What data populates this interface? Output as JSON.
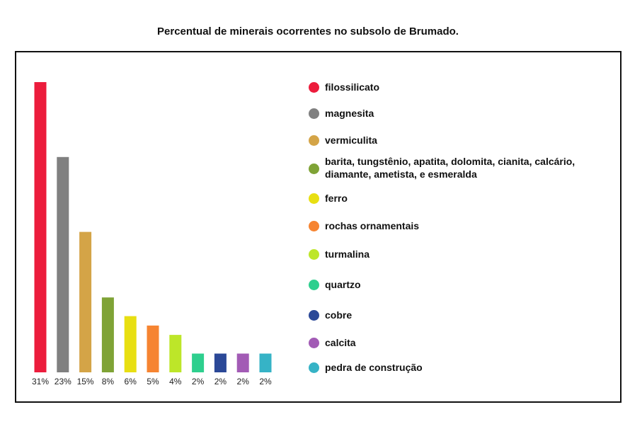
{
  "chart_data": {
    "type": "bar",
    "title": "Percentual de minerais ocorrentes no subsolo de Brumado.",
    "xlabel": "",
    "ylabel": "",
    "ylim": [
      0,
      31
    ],
    "grid": false,
    "legend_position": "right",
    "categories": [
      "filossilicato",
      "magnesita",
      "vermiculita",
      "barita, tungstênio, apatita, dolomita, cianita, calcário, diamante, ametista, e esmeralda",
      "ferro",
      "rochas ornamentais",
      "turmalina",
      "quartzo",
      "cobre",
      "calcita",
      "pedra de construção"
    ],
    "values": [
      31,
      23,
      15,
      8,
      6,
      5,
      4,
      2,
      2,
      2,
      2
    ],
    "value_labels": [
      "31%",
      "23%",
      "15%",
      "8%",
      "6%",
      "5%",
      "4%",
      "2%",
      "2%",
      "2%",
      "2%"
    ],
    "colors": [
      "#ec1c3c",
      "#808080",
      "#d4a447",
      "#7fa336",
      "#e8df12",
      "#f68431",
      "#bde629",
      "#2ecf8e",
      "#2b4897",
      "#a25bb5",
      "#36b3c6"
    ],
    "legend": [
      "filossilicato",
      "magnesita",
      "vermiculita",
      "barita, tungstênio, apatita, dolomita, cianita, calcário, diamante, ametista, e esmeralda",
      "ferro",
      "rochas ornamentais",
      "turmalina",
      "quartzo",
      "cobre",
      "calcita",
      "pedra de construção"
    ]
  }
}
